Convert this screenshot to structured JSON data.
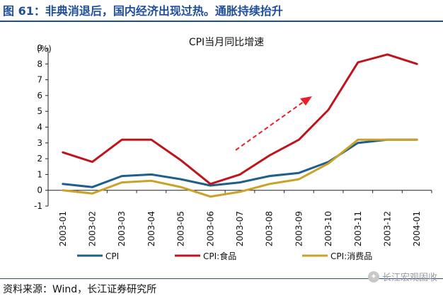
{
  "figure_title": "图 61：非典消退后，国内经济出现过热。通胀持续抬升",
  "source": "资料来源：Wind，长江证券研究所",
  "watermark": "长江宏观固收",
  "colors": {
    "title": "#1f4e9a",
    "cpi": "#1f5f8b",
    "cpi_food": "#c0141c",
    "cpi_consumer": "#c9a227",
    "arrow": "#e8202a"
  },
  "chart_data": {
    "type": "line",
    "title": "CPI当月同比增速",
    "unit_label": "(%)",
    "categories": [
      "2003-01",
      "2003-02",
      "2003-03",
      "2003-04",
      "2003-05",
      "2003-06",
      "2003-07",
      "2003-08",
      "2003-09",
      "2003-10",
      "2003-11",
      "2003-12",
      "2004-01"
    ],
    "ylim": [
      -1,
      9
    ],
    "yticks": [
      -1,
      0,
      1,
      2,
      3,
      4,
      5,
      6,
      7,
      8,
      9
    ],
    "legend_position": "bottom",
    "grid": false,
    "series": [
      {
        "name": "CPI",
        "values": [
          0.4,
          0.2,
          0.9,
          1.0,
          0.7,
          0.3,
          0.5,
          0.9,
          1.1,
          1.8,
          3.0,
          3.2,
          3.2
        ]
      },
      {
        "name": "CPI:食品",
        "values": [
          2.4,
          1.8,
          3.2,
          3.2,
          1.9,
          0.4,
          1.0,
          2.2,
          3.2,
          5.1,
          8.1,
          8.6,
          8.0
        ]
      },
      {
        "name": "CPI:消费品",
        "values": [
          0.0,
          -0.2,
          0.5,
          0.6,
          0.2,
          -0.4,
          -0.1,
          0.4,
          0.7,
          1.7,
          3.2,
          3.2,
          3.2
        ]
      }
    ]
  }
}
